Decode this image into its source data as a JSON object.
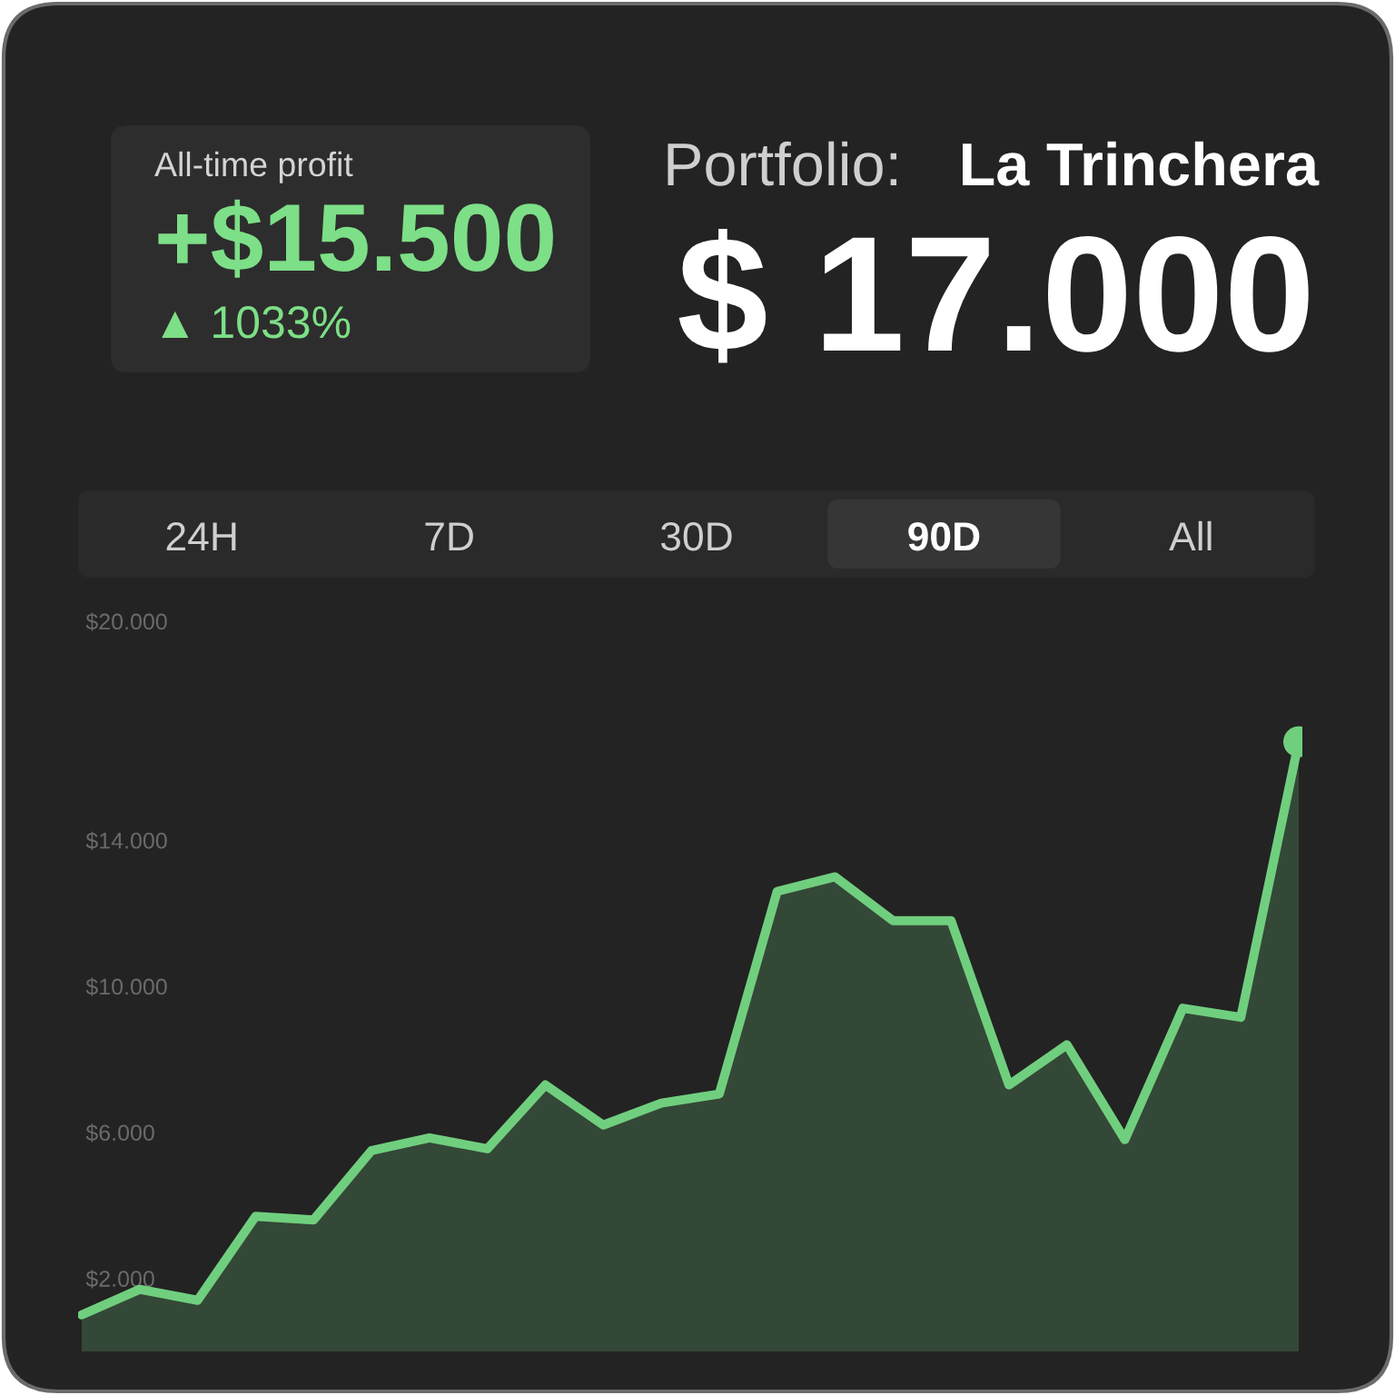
{
  "chart_data": {
    "type": "area",
    "annotations": [
      "All-time profit",
      "+$15.500",
      "▲ 1033%",
      "Portfolio:",
      "La Trinchera",
      "$ 17.000",
      "24H",
      "7D",
      "30D",
      "90D",
      "All"
    ],
    "categories": [
      null,
      null,
      null,
      null,
      null,
      null,
      null,
      null,
      null,
      null,
      null,
      null,
      null,
      null,
      null,
      null,
      null,
      null,
      null,
      null,
      null,
      null
    ],
    "series": [
      {
        "color": "#70cf7e",
        "values": [
          1000,
          1700,
          1400,
          3700,
          3600,
          5500,
          5850,
          5550,
          7300,
          6200,
          6800,
          7050,
          12600,
          13000,
          11800,
          11800,
          7300,
          8400,
          5800,
          9400,
          9150,
          16700
        ]
      },
      {
        "type": "scatter",
        "color": "#70cf7e",
        "marker": "circle",
        "values": [
          null,
          null,
          null,
          null,
          null,
          null,
          null,
          null,
          null,
          null,
          null,
          null,
          null,
          null,
          null,
          null,
          null,
          null,
          null,
          null,
          null,
          16700
        ]
      }
    ],
    "ylim": [
      0,
      20000
    ],
    "yticks": [
      {
        "value": 2000,
        "label": "$2.000"
      },
      {
        "value": 6000,
        "label": "$6.000"
      },
      {
        "value": 10000,
        "label": "$10.000"
      },
      {
        "value": 14000,
        "label": "$14.000"
      },
      {
        "value": 20000,
        "label": "$20.000"
      }
    ],
    "tick_labels": "y",
    "line_style": "solid"
  }
}
